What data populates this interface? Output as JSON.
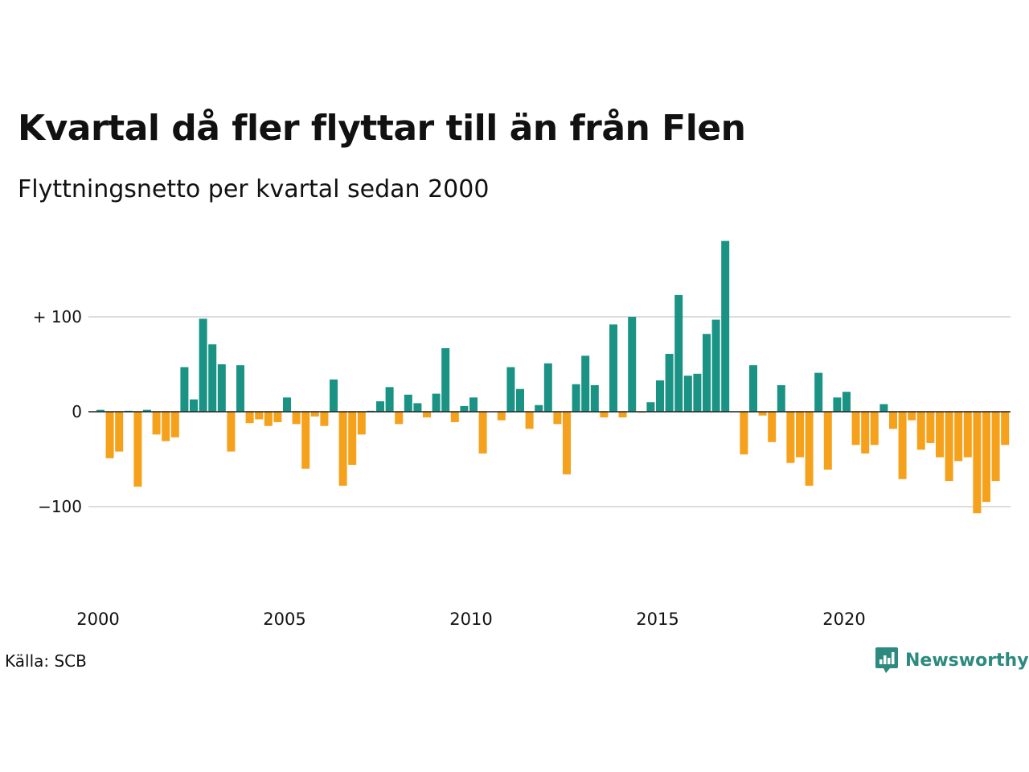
{
  "title": "Kvartal då fler flyttar till än från Flen",
  "subtitle": "Flyttningsnetto per kvartal sedan 2000",
  "source": "Källa: SCB",
  "brand": {
    "name": "Newsworthy",
    "icon": "newsworthy-logo-icon"
  },
  "colors": {
    "positive": "#1a9385",
    "negative": "#f5a11c",
    "grid": "#dddddd",
    "zero": "#222222"
  },
  "chart_data": {
    "type": "bar",
    "start": "2000 Q1",
    "frequency": "quarter",
    "ylim": [
      -130,
      185
    ],
    "yticks": [
      {
        "value": 100,
        "label": "+ 100"
      },
      {
        "value": 0,
        "label": "0"
      },
      {
        "value": -100,
        "label": "−100"
      }
    ],
    "xticks": [
      {
        "index": 0,
        "label": "2000"
      },
      {
        "index": 20,
        "label": "2005"
      },
      {
        "index": 40,
        "label": "2010"
      },
      {
        "index": 60,
        "label": "2015"
      },
      {
        "index": 80,
        "label": "2020"
      }
    ],
    "values": [
      2,
      -49,
      -42,
      1,
      -79,
      2,
      -24,
      -31,
      -27,
      47,
      13,
      98,
      71,
      50,
      -42,
      49,
      -12,
      -8,
      -15,
      -11,
      15,
      -13,
      -60,
      -5,
      -15,
      34,
      -78,
      -56,
      -24,
      1,
      11,
      26,
      -13,
      18,
      9,
      -6,
      19,
      67,
      -11,
      6,
      15,
      -44,
      0,
      -9,
      47,
      24,
      -18,
      7,
      51,
      -13,
      -66,
      29,
      59,
      28,
      -6,
      92,
      -6,
      100,
      -1,
      10,
      33,
      61,
      123,
      38,
      40,
      82,
      97,
      180,
      0,
      -45,
      49,
      -4,
      -32,
      28,
      -54,
      -48,
      -78,
      41,
      -61,
      15,
      21,
      -35,
      -44,
      -35,
      8,
      -18,
      -71,
      -9,
      -40,
      -33,
      -48,
      -73,
      -52,
      -48,
      -107,
      -95,
      -73,
      -35
    ]
  }
}
